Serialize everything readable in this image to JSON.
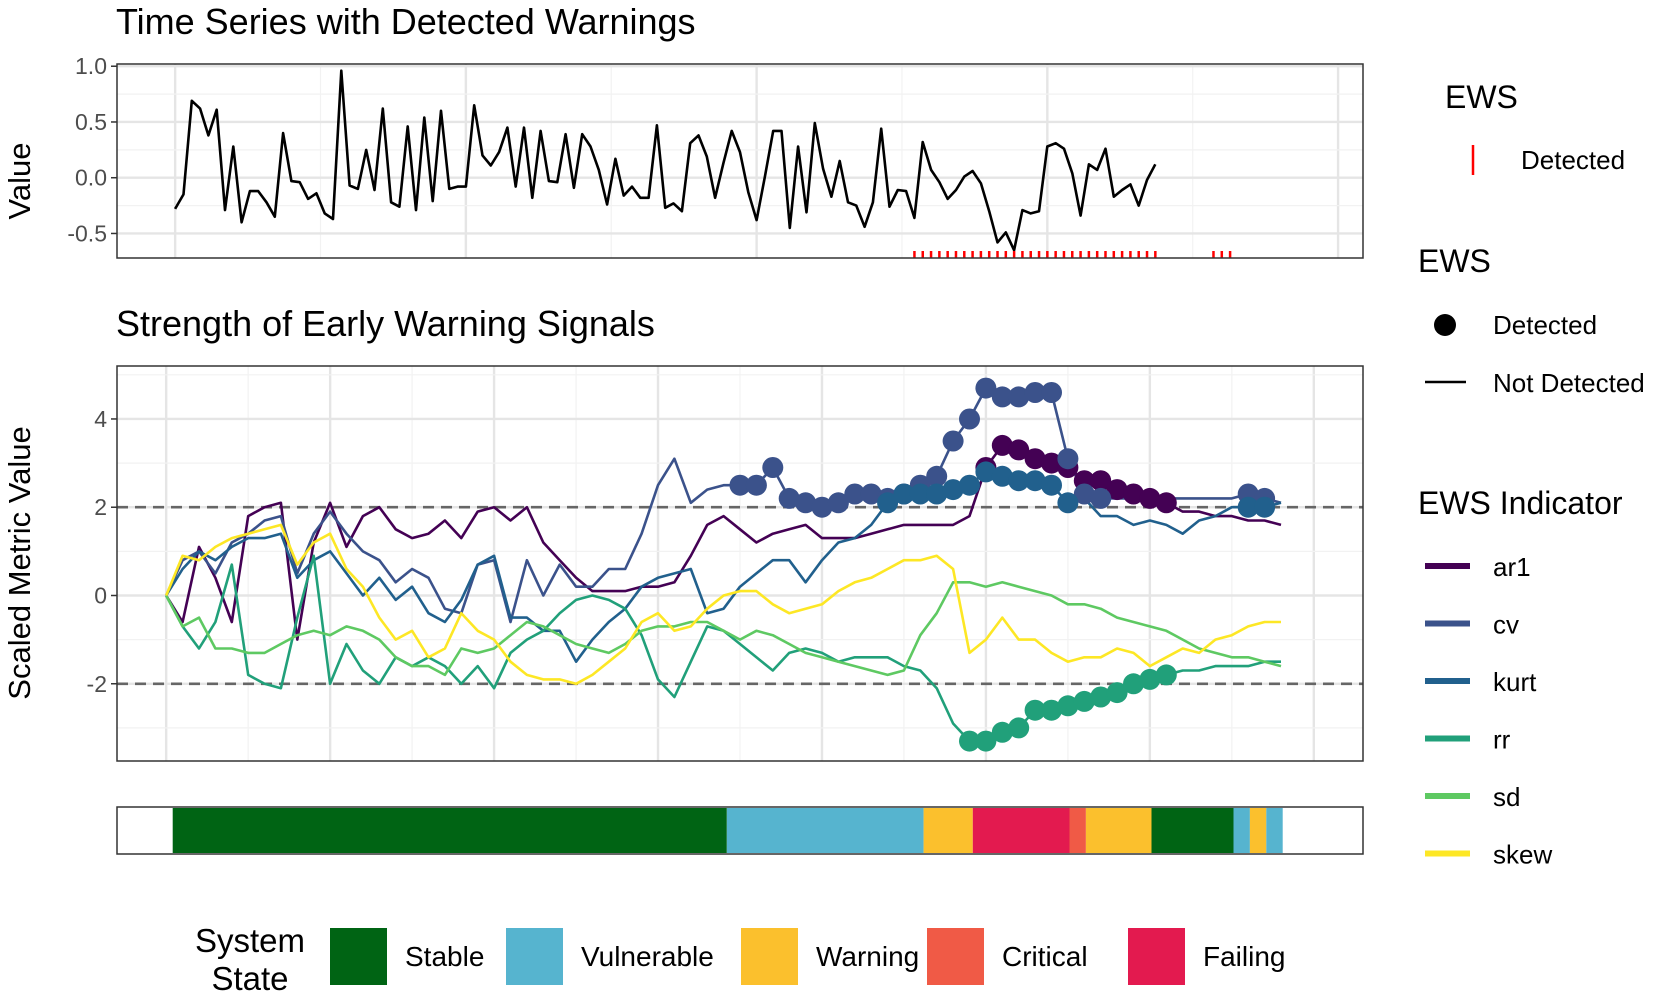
{
  "colors": {
    "ar1": "#440154",
    "cv": "#3b528b",
    "kurt": "#21608d",
    "rr": "#21a07a",
    "sd": "#5ec962",
    "skew": "#fde725",
    "warn_tick": "#ff0000",
    "stable": "#006414",
    "vulnerable": "#56b4cf",
    "warning": "#fbc02d",
    "critical": "#f05a46",
    "failing": "#e31a4f"
  },
  "chart_data": [
    {
      "type": "line",
      "title": "Time Series with Detected Warnings",
      "xlabel": "",
      "ylabel": "Value",
      "xlim": [
        -7,
        143
      ],
      "ylim": [
        -0.72,
        1.02
      ],
      "yticks": [
        1.0,
        0.5,
        0.0,
        -0.5
      ],
      "ytick_labels": [
        "1.0",
        "0.5",
        "0.0",
        "-0.5"
      ],
      "values": [
        -0.28,
        -0.15,
        0.69,
        0.62,
        0.38,
        0.61,
        -0.29,
        0.28,
        -0.4,
        -0.12,
        -0.12,
        -0.22,
        -0.35,
        0.4,
        -0.03,
        -0.04,
        -0.19,
        -0.14,
        -0.32,
        -0.37,
        0.96,
        -0.07,
        -0.1,
        0.25,
        -0.11,
        0.62,
        -0.22,
        -0.26,
        0.46,
        -0.29,
        0.54,
        -0.21,
        0.6,
        -0.1,
        -0.08,
        -0.08,
        0.65,
        0.2,
        0.11,
        0.23,
        0.45,
        -0.08,
        0.45,
        -0.18,
        0.42,
        -0.03,
        -0.04,
        0.39,
        -0.09,
        0.39,
        0.28,
        0.07,
        -0.24,
        0.17,
        -0.16,
        -0.08,
        -0.18,
        -0.18,
        0.47,
        -0.27,
        -0.23,
        -0.3,
        0.31,
        0.38,
        0.19,
        -0.18,
        0.13,
        0.42,
        0.23,
        -0.13,
        -0.38,
        0.01,
        0.42,
        0.42,
        -0.45,
        0.28,
        -0.31,
        0.49,
        0.08,
        -0.17,
        0.15,
        -0.22,
        -0.25,
        -0.44,
        -0.22,
        0.44,
        -0.26,
        -0.11,
        -0.12,
        -0.36,
        0.32,
        0.07,
        -0.04,
        -0.19,
        -0.11,
        0.01,
        0.06,
        -0.05,
        -0.3,
        -0.58,
        -0.49,
        -0.65,
        -0.29,
        -0.32,
        -0.3,
        0.28,
        0.31,
        0.26,
        0.04,
        -0.34,
        0.12,
        0.07,
        0.26,
        -0.17,
        -0.11,
        -0.06,
        -0.25,
        -0.02,
        0.12
      ],
      "warning_label": "Detected",
      "warnings_detected_at": [
        89,
        90,
        91,
        92,
        93,
        94,
        95,
        96,
        97,
        98,
        99,
        100,
        101,
        102,
        103,
        104,
        105,
        106,
        107,
        108,
        109,
        110,
        111,
        112,
        113,
        114,
        115,
        116,
        117,
        118,
        125,
        126,
        127
      ],
      "legend": {
        "title": "EWS",
        "entries": [
          "Detected"
        ]
      }
    },
    {
      "type": "line",
      "title": "Strength of Early Warning Signals",
      "xlabel": "",
      "ylabel": "Scaled Metric Value",
      "xlim": [
        -3,
        73
      ],
      "ylim": [
        -3.75,
        5.2
      ],
      "yticks": [
        4,
        2,
        0,
        -2
      ],
      "ytick_labels": [
        "4",
        "2",
        "0",
        "-2"
      ],
      "thresholds": [
        2,
        -2
      ],
      "series": [
        {
          "name": "ar1",
          "key": "ar1",
          "values": [
            0,
            -0.6,
            1.1,
            0.4,
            -0.6,
            1.8,
            2.0,
            2.1,
            -1.0,
            1.2,
            2.1,
            1.1,
            1.8,
            2.0,
            1.5,
            1.3,
            1.4,
            1.7,
            1.3,
            1.9,
            2.0,
            1.7,
            2.0,
            1.2,
            0.8,
            0.4,
            0.1,
            0.1,
            0.1,
            0.2,
            0.2,
            0.3,
            0.9,
            1.6,
            1.8,
            1.5,
            1.2,
            1.4,
            1.5,
            1.6,
            1.3,
            1.3,
            1.3,
            1.4,
            1.5,
            1.6,
            1.6,
            1.6,
            1.6,
            1.8,
            2.9,
            3.4,
            3.3,
            3.1,
            3.0,
            2.9,
            2.6,
            2.6,
            2.4,
            2.3,
            2.2,
            2.1,
            1.9,
            1.9,
            1.8,
            1.8,
            1.7,
            1.7,
            1.6
          ],
          "detected": [
            50,
            51,
            52,
            53,
            54,
            55,
            56,
            57,
            58,
            59,
            60,
            61
          ]
        },
        {
          "name": "cv",
          "key": "cv",
          "values": [
            0,
            0.8,
            1.0,
            0.5,
            1.2,
            1.4,
            1.7,
            1.8,
            0.5,
            1.4,
            1.9,
            1.4,
            1.0,
            0.8,
            0.3,
            0.6,
            0.4,
            -0.3,
            -0.4,
            0.7,
            0.8,
            -0.6,
            0.8,
            0.0,
            0.7,
            0.2,
            0.2,
            0.6,
            0.6,
            1.4,
            2.5,
            3.1,
            2.1,
            2.4,
            2.5,
            2.5,
            2.5,
            2.9,
            2.2,
            2.1,
            2.0,
            2.1,
            2.3,
            2.3,
            2.2,
            2.3,
            2.5,
            2.7,
            3.5,
            4.0,
            4.7,
            4.5,
            4.5,
            4.6,
            4.6,
            3.1,
            2.3,
            2.2,
            2.2,
            2.2,
            2.2,
            2.2,
            2.2,
            2.2,
            2.2,
            2.2,
            2.3,
            2.2,
            2.1
          ],
          "detected": [
            35,
            36,
            37,
            38,
            39,
            40,
            41,
            42,
            43,
            44,
            45,
            46,
            47,
            48,
            49,
            50,
            51,
            52,
            53,
            54,
            55,
            56,
            57,
            66,
            67
          ]
        },
        {
          "name": "kurt",
          "key": "kurt",
          "values": [
            0,
            0.6,
            1.0,
            0.8,
            1.1,
            1.3,
            1.3,
            1.4,
            0.4,
            0.8,
            1.0,
            0.5,
            0.0,
            0.4,
            -0.1,
            0.2,
            -0.4,
            -0.6,
            -0.1,
            0.7,
            0.9,
            -0.5,
            -0.5,
            -0.8,
            -0.8,
            -1.5,
            -1.0,
            -0.6,
            -0.3,
            0.2,
            0.4,
            0.5,
            0.6,
            -0.4,
            -0.3,
            0.2,
            0.5,
            0.8,
            0.8,
            0.3,
            0.8,
            1.2,
            1.3,
            1.6,
            2.1,
            2.3,
            2.3,
            2.3,
            2.4,
            2.5,
            2.8,
            2.7,
            2.6,
            2.6,
            2.5,
            2.1,
            2.2,
            1.8,
            1.8,
            1.6,
            1.7,
            1.6,
            1.4,
            1.7,
            1.8,
            2.0,
            2.0,
            2.0,
            2.1
          ],
          "detected": [
            44,
            45,
            46,
            47,
            48,
            49,
            50,
            51,
            52,
            53,
            54,
            55,
            66,
            67
          ]
        },
        {
          "name": "rr",
          "key": "rr",
          "values": [
            0,
            -0.7,
            -1.2,
            -0.6,
            0.7,
            -1.8,
            -2.0,
            -2.1,
            -0.5,
            0.9,
            -2.0,
            -1.1,
            -1.7,
            -2.0,
            -1.4,
            -1.6,
            -1.4,
            -1.6,
            -2.0,
            -1.6,
            -2.1,
            -1.3,
            -1.0,
            -0.8,
            -0.4,
            -0.1,
            0.0,
            -0.1,
            -0.3,
            -0.9,
            -1.9,
            -2.3,
            -1.5,
            -0.7,
            -0.8,
            -1.1,
            -1.4,
            -1.7,
            -1.3,
            -1.2,
            -1.3,
            -1.5,
            -1.4,
            -1.4,
            -1.4,
            -1.6,
            -1.7,
            -2.1,
            -2.9,
            -3.3,
            -3.3,
            -3.1,
            -3.0,
            -2.6,
            -2.6,
            -2.5,
            -2.4,
            -2.3,
            -2.2,
            -2.0,
            -1.9,
            -1.8,
            -1.7,
            -1.7,
            -1.6,
            -1.6,
            -1.6,
            -1.5,
            -1.5
          ],
          "detected": [
            49,
            50,
            51,
            52,
            53,
            54,
            55,
            56,
            57,
            58,
            59,
            60,
            61
          ]
        },
        {
          "name": "sd",
          "key": "sd",
          "values": [
            0,
            -0.7,
            -0.5,
            -1.2,
            -1.2,
            -1.3,
            -1.3,
            -1.1,
            -0.9,
            -0.8,
            -0.9,
            -0.7,
            -0.8,
            -1.0,
            -1.4,
            -1.6,
            -1.6,
            -1.8,
            -1.2,
            -1.3,
            -1.2,
            -0.9,
            -0.6,
            -0.7,
            -0.9,
            -1.1,
            -1.2,
            -1.3,
            -1.1,
            -0.8,
            -0.7,
            -0.7,
            -0.6,
            -0.6,
            -0.8,
            -1.0,
            -0.8,
            -0.9,
            -1.1,
            -1.3,
            -1.4,
            -1.5,
            -1.6,
            -1.7,
            -1.8,
            -1.7,
            -0.9,
            -0.4,
            0.3,
            0.3,
            0.2,
            0.3,
            0.2,
            0.1,
            0.0,
            -0.2,
            -0.2,
            -0.3,
            -0.5,
            -0.6,
            -0.7,
            -0.8,
            -1.0,
            -1.2,
            -1.3,
            -1.4,
            -1.4,
            -1.5,
            -1.6
          ],
          "detected": []
        },
        {
          "name": "skew",
          "key": "skew",
          "values": [
            0,
            0.9,
            0.8,
            1.1,
            1.3,
            1.4,
            1.5,
            1.6,
            0.7,
            1.2,
            1.4,
            0.6,
            0.2,
            -0.5,
            -1.0,
            -0.8,
            -1.4,
            -1.2,
            -0.4,
            -0.8,
            -1.0,
            -1.5,
            -1.8,
            -1.9,
            -1.9,
            -2.0,
            -1.8,
            -1.5,
            -1.2,
            -0.6,
            -0.4,
            -0.8,
            -0.7,
            -0.3,
            0.0,
            0.1,
            0.1,
            -0.2,
            -0.4,
            -0.3,
            -0.2,
            0.1,
            0.3,
            0.4,
            0.6,
            0.8,
            0.8,
            0.9,
            0.6,
            -1.3,
            -1.0,
            -0.5,
            -1.0,
            -1.0,
            -1.3,
            -1.5,
            -1.4,
            -1.4,
            -1.2,
            -1.3,
            -1.6,
            -1.4,
            -1.2,
            -1.3,
            -1.0,
            -0.9,
            -0.7,
            -0.6,
            -0.6
          ],
          "detected": []
        }
      ],
      "legend": {
        "style_title": "EWS",
        "style_entries": [
          "Detected",
          "Not Detected"
        ],
        "indicator_title": "EWS Indicator"
      }
    },
    {
      "type": "heatmap",
      "title": "",
      "xlim": [
        -3,
        73
      ],
      "segments": [
        {
          "state": "Stable",
          "from": 0.4,
          "to": 34.2
        },
        {
          "state": "Vulnerable",
          "from": 34.2,
          "to": 46.2
        },
        {
          "state": "Warning",
          "from": 46.2,
          "to": 49.2
        },
        {
          "state": "Failing",
          "from": 49.2,
          "to": 55.1
        },
        {
          "state": "Critical",
          "from": 55.1,
          "to": 56.1
        },
        {
          "state": "Warning",
          "from": 56.1,
          "to": 60.1
        },
        {
          "state": "Stable",
          "from": 60.1,
          "to": 65.1
        },
        {
          "state": "Vulnerable",
          "from": 65.1,
          "to": 66.1
        },
        {
          "state": "Warning",
          "from": 66.1,
          "to": 67.1
        },
        {
          "state": "Vulnerable",
          "from": 67.1,
          "to": 68.1
        }
      ],
      "legend": {
        "title_line1": "System",
        "title_line2": "State",
        "entries": [
          {
            "label": "Stable",
            "key": "stable"
          },
          {
            "label": "Vulnerable",
            "key": "vulnerable"
          },
          {
            "label": "Warning",
            "key": "warning"
          },
          {
            "label": "Critical",
            "key": "critical"
          },
          {
            "label": "Failing",
            "key": "failing"
          }
        ]
      }
    }
  ]
}
